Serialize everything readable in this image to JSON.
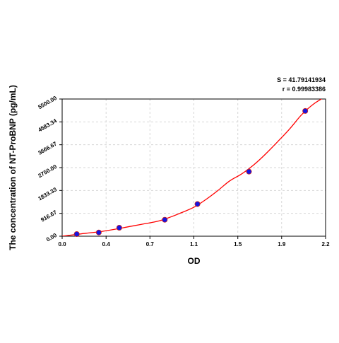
{
  "chart_data": {
    "type": "scatter",
    "title": "",
    "xlabel": "OD",
    "ylabel": "The concentration of NT-ProBNP (pg/mL)",
    "xlim": [
      0,
      2.2
    ],
    "ylim": [
      0,
      5500
    ],
    "x_ticks": [
      "0.0",
      "0.4",
      "0.7",
      "1.1",
      "1.5",
      "1.9",
      "2.2"
    ],
    "x_tick_values": [
      0.0,
      0.367,
      0.733,
      1.1,
      1.467,
      1.833,
      2.2
    ],
    "y_ticks": [
      "0.00",
      "916.67",
      "1833.33",
      "2750.00",
      "3666.67",
      "4583.34",
      "5500.00"
    ],
    "y_tick_values": [
      0,
      916.67,
      1833.33,
      2750.0,
      3666.67,
      4583.34,
      5500.0
    ],
    "grid": true,
    "annotations": [
      "S = 41.79141934",
      "r = 0.99983386"
    ],
    "points": {
      "x": [
        0.122,
        0.306,
        0.477,
        0.857,
        1.13,
        1.56,
        2.03
      ],
      "y": [
        85,
        150,
        340,
        660,
        1290,
        2590,
        5020
      ],
      "marker_color": "#1414e0",
      "marker_edge_color": "#cc2222"
    },
    "fit_curve": {
      "x": [
        0.0,
        0.1,
        0.2,
        0.3,
        0.4,
        0.5,
        0.6,
        0.7,
        0.8,
        0.9,
        1.0,
        1.1,
        1.2,
        1.3,
        1.4,
        1.5,
        1.6,
        1.7,
        1.8,
        1.9,
        2.0,
        2.1,
        2.2
      ],
      "y": [
        0,
        60,
        120,
        170,
        245,
        330,
        420,
        510,
        600,
        760,
        950,
        1160,
        1470,
        1830,
        2220,
        2500,
        2860,
        3300,
        3790,
        4300,
        4870,
        5300,
        5600
      ],
      "color": "#ff0000"
    }
  }
}
